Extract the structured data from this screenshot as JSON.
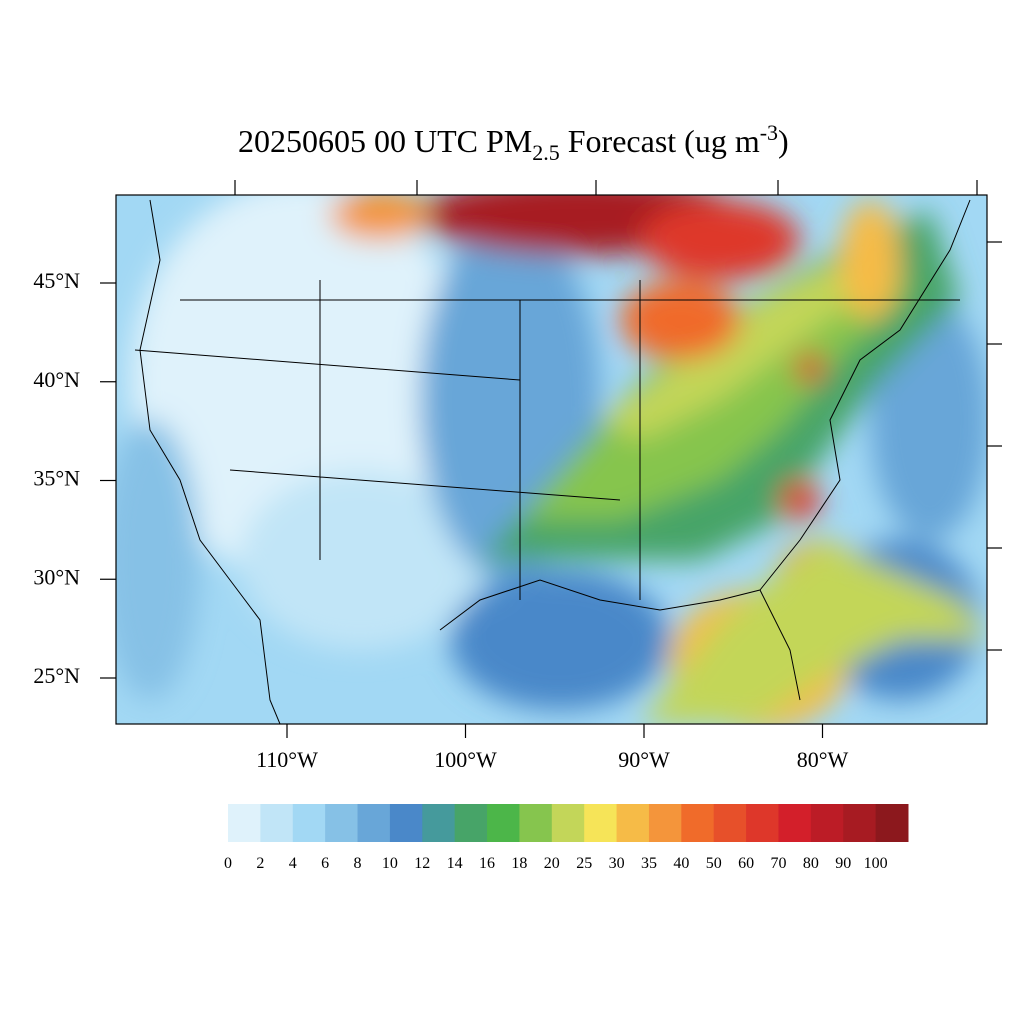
{
  "title": {
    "main": "20250605 00 UTC PM",
    "sub": "2.5",
    "mid": " Forecast (ug m",
    "sup": "-3",
    "end": ")"
  },
  "map": {
    "lat_ticks": [
      {
        "value": 45,
        "label": "45°N"
      },
      {
        "value": 40,
        "label": "40°N"
      },
      {
        "value": 35,
        "label": "35°N"
      },
      {
        "value": 30,
        "label": "30°N"
      },
      {
        "value": 25,
        "label": "25°N"
      }
    ],
    "lon_ticks": [
      {
        "value": -110,
        "label": "110°W"
      },
      {
        "value": -100,
        "label": "100°W"
      },
      {
        "value": -90,
        "label": "90°W"
      },
      {
        "value": -80,
        "label": "80°W"
      }
    ],
    "colorbar": {
      "levels": [
        0,
        2,
        4,
        6,
        8,
        10,
        12,
        14,
        16,
        18,
        20,
        25,
        30,
        35,
        40,
        50,
        60,
        70,
        80,
        90,
        100
      ],
      "colors": [
        "#dff2fb",
        "#c1e5f7",
        "#a2d8f4",
        "#86c1e6",
        "#68a6d8",
        "#4a88c9",
        "#459a9c",
        "#47a468",
        "#4cb649",
        "#86c54e",
        "#c3d659",
        "#f6e458",
        "#f6bb47",
        "#f4953b",
        "#f06b2a",
        "#e7502a",
        "#de372a",
        "#d31f2a",
        "#bc1c26",
        "#a71b22",
        "#8c181d"
      ]
    }
  }
}
